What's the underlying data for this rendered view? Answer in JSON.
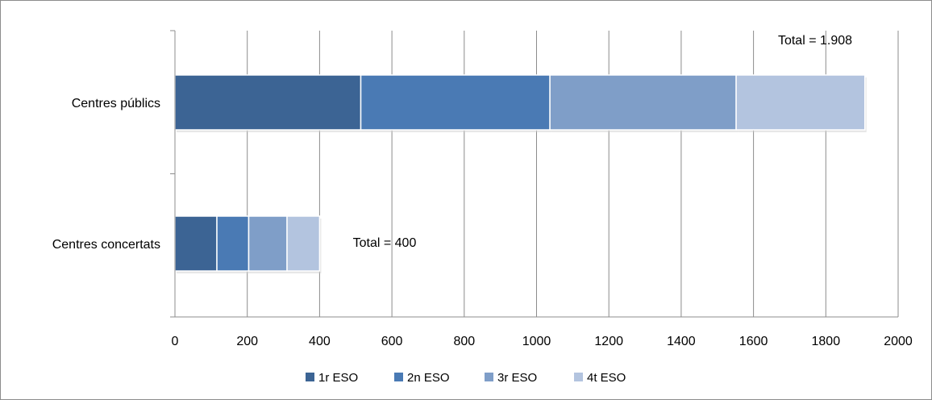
{
  "chart_data": {
    "type": "bar",
    "orientation": "horizontal",
    "stacked": true,
    "categories": [
      "Centres públics",
      "Centres concertats"
    ],
    "series": [
      {
        "name": "1r ESO",
        "values": [
          514,
          116
        ],
        "color": "#3c6494"
      },
      {
        "name": "2n ESO",
        "values": [
          523,
          88
        ],
        "color": "#4a7ab4"
      },
      {
        "name": "3r ESO",
        "values": [
          515,
          106
        ],
        "color": "#7f9ec8"
      },
      {
        "name": "4t ESO",
        "values": [
          356,
          90
        ],
        "color": "#b3c4df"
      }
    ],
    "annotations": [
      "Total = 1.908",
      "Total = 400"
    ],
    "xlim": [
      0,
      2000
    ],
    "xticks": [
      0,
      200,
      400,
      600,
      800,
      1000,
      1200,
      1400,
      1600,
      1800,
      2000
    ],
    "grid": "vertical",
    "legend_position": "bottom",
    "title": "",
    "xlabel": "",
    "ylabel": ""
  }
}
